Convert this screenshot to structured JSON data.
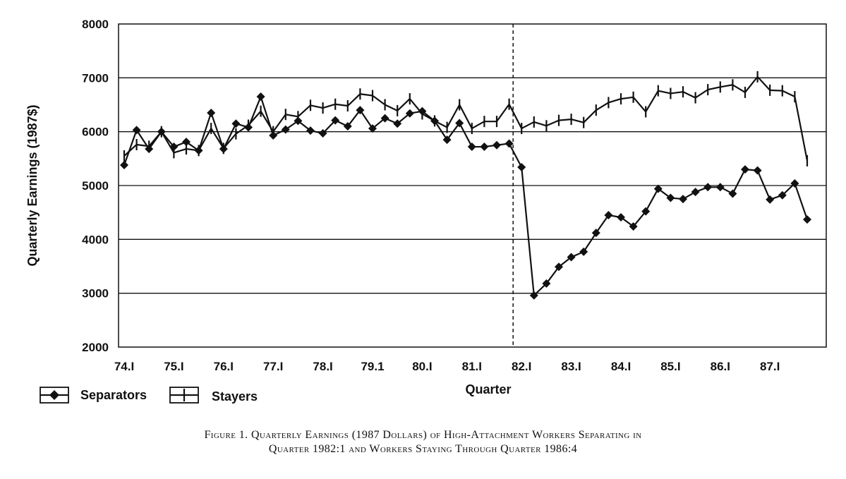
{
  "chart_data": {
    "type": "line",
    "title": "",
    "xlabel": "Quarter",
    "ylabel": "Quarterly Earnings (1987$)",
    "ylim": [
      2000,
      8000
    ],
    "yticks": [
      "2000",
      "3000",
      "4000",
      "5000",
      "6000",
      "7000",
      "8000"
    ],
    "xticks": [
      "74.I",
      "75.I",
      "76.I",
      "77.I",
      "78.I",
      "79.1",
      "80.I",
      "81.I",
      "82.I",
      "83.I",
      "84.I",
      "85.I",
      "86.I",
      "87.I"
    ],
    "grid": "horizontal",
    "reference_line": {
      "x_quarter_index": 32,
      "style": "dashed"
    },
    "legend": "bottom-left",
    "series": [
      {
        "name": "Separators",
        "marker": "diamond",
        "values": [
          5380,
          6030,
          5680,
          6000,
          5720,
          5810,
          5650,
          6350,
          5680,
          6150,
          6080,
          6650,
          5930,
          6040,
          6200,
          6020,
          5970,
          6210,
          6100,
          6400,
          6060,
          6250,
          6150,
          6340,
          6380,
          6200,
          5850,
          6160,
          5720,
          5720,
          5750,
          5780,
          5340,
          2960,
          3180,
          3490,
          3670,
          3770,
          4120,
          4450,
          4410,
          4240,
          4520,
          4940,
          4770,
          4750,
          4880,
          4970,
          4970,
          4850,
          5300,
          5280,
          4740,
          4820,
          5040,
          4370
        ]
      },
      {
        "name": "Stayers",
        "marker": "plus",
        "values": [
          5550,
          5760,
          5730,
          6000,
          5610,
          5680,
          5650,
          6060,
          5690,
          5960,
          6120,
          6380,
          6000,
          6320,
          6280,
          6490,
          6440,
          6510,
          6480,
          6700,
          6670,
          6500,
          6390,
          6610,
          6330,
          6200,
          6080,
          6500,
          6060,
          6190,
          6190,
          6510,
          6060,
          6180,
          6110,
          6210,
          6230,
          6170,
          6400,
          6540,
          6610,
          6640,
          6370,
          6760,
          6710,
          6740,
          6630,
          6780,
          6830,
          6870,
          6730,
          7020,
          6770,
          6760,
          6650,
          5460
        ]
      }
    ]
  },
  "caption": {
    "line1": "Figure 1. Quarterly Earnings (1987 Dollars) of High-Attachment Workers Separating in",
    "line2": "Quarter 1982:1 and Workers Staying Through Quarter 1986:4"
  }
}
